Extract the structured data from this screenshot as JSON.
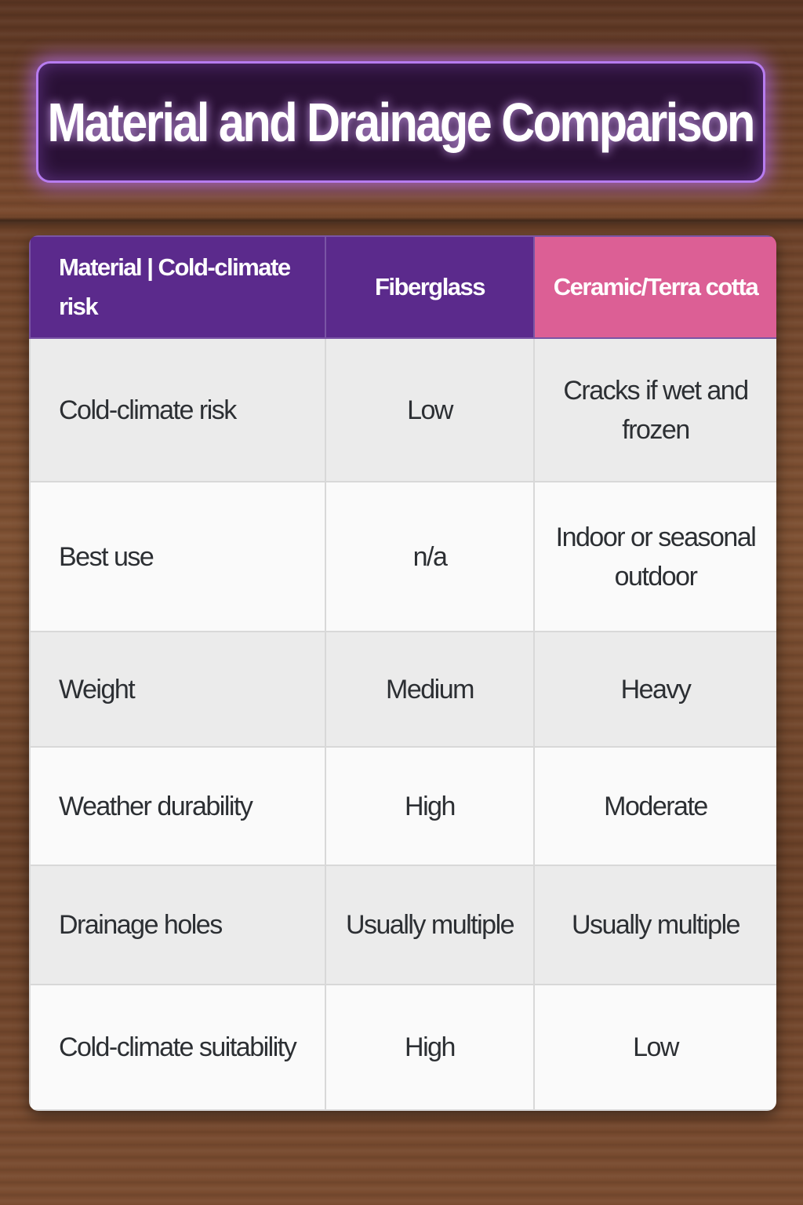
{
  "header": {
    "title": "Material and Drainage Comparison"
  },
  "table": {
    "columns": [
      "Material | Cold-climate risk",
      "Fiberglass",
      "Ceramic/Terra cotta"
    ],
    "rows": [
      [
        "Cold-climate risk",
        "Low",
        "Cracks if wet and frozen"
      ],
      [
        "Best use",
        "n/a",
        "Indoor or seasonal outdoor"
      ],
      [
        "Weight",
        "Medium",
        "Heavy"
      ],
      [
        "Weather durability",
        "High",
        "Moderate"
      ],
      [
        "Drainage holes",
        "Usually multiple",
        "Usually multiple"
      ],
      [
        "Cold-climate suitability",
        "High",
        "Low"
      ]
    ]
  }
}
